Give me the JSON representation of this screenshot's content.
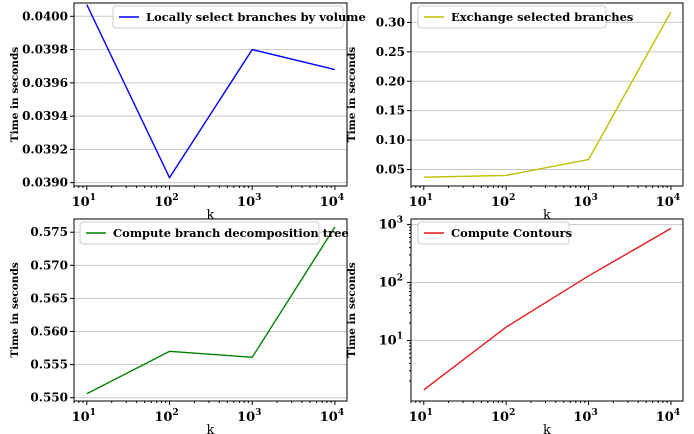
{
  "chart_data": [
    {
      "type": "line",
      "xscale": "log",
      "yscale": "linear",
      "x": [
        10,
        100,
        1000,
        10000
      ],
      "xlim": [
        7,
        14000
      ],
      "ylim": [
        0.03898,
        0.04008
      ],
      "yticks": [
        0.039,
        0.0392,
        0.0394,
        0.0396,
        0.0398,
        0.04
      ],
      "ytick_labels": [
        "0.0390",
        "0.0392",
        "0.0394",
        "0.0396",
        "0.0398",
        "0.0400"
      ],
      "xtick_base": "10",
      "xtick_exponents": [
        "1",
        "2",
        "3",
        "4"
      ],
      "xlabel": "k",
      "ylabel": "Time in seconds",
      "grid": "horizontal",
      "legend_position": "top-right",
      "series": [
        {
          "name": "Locally select branches by volume",
          "color": "#0000ff",
          "values": [
            0.04007,
            0.03903,
            0.0398,
            0.03968
          ]
        }
      ]
    },
    {
      "type": "line",
      "xscale": "log",
      "yscale": "linear",
      "x": [
        10,
        100,
        1000,
        10000
      ],
      "xlim": [
        7,
        14000
      ],
      "ylim": [
        0.022,
        0.333
      ],
      "yticks": [
        0.05,
        0.1,
        0.15,
        0.2,
        0.25,
        0.3
      ],
      "ytick_labels": [
        "0.05",
        "0.10",
        "0.15",
        "0.20",
        "0.25",
        "0.30"
      ],
      "xtick_base": "10",
      "xtick_exponents": [
        "1",
        "2",
        "3",
        "4"
      ],
      "xlabel": "k",
      "ylabel": "Time in seconds",
      "grid": "horizontal",
      "legend_position": "top-left",
      "series": [
        {
          "name": "Exchange selected branches",
          "color": "#bfbf00",
          "values": [
            0.037,
            0.04,
            0.067,
            0.318
          ]
        }
      ]
    },
    {
      "type": "line",
      "xscale": "log",
      "yscale": "linear",
      "x": [
        10,
        100,
        1000,
        10000
      ],
      "xlim": [
        7,
        14000
      ],
      "ylim": [
        0.5495,
        0.577
      ],
      "yticks": [
        0.55,
        0.555,
        0.56,
        0.565,
        0.57,
        0.575
      ],
      "ytick_labels": [
        "0.550",
        "0.555",
        "0.560",
        "0.565",
        "0.570",
        "0.575"
      ],
      "xtick_base": "10",
      "xtick_exponents": [
        "1",
        "2",
        "3",
        "4"
      ],
      "xlabel": "k",
      "ylabel": "Time in seconds",
      "grid": "horizontal",
      "legend_position": "top-left",
      "series": [
        {
          "name": "Compute branch decomposition tree",
          "color": "#008000",
          "values": [
            0.5506,
            0.557,
            0.5561,
            0.5758
          ]
        }
      ]
    },
    {
      "type": "line",
      "xscale": "log",
      "yscale": "log",
      "x": [
        10,
        100,
        1000,
        10000
      ],
      "xlim": [
        7,
        14000
      ],
      "ylim": [
        0.9,
        1250
      ],
      "yticks": [
        10,
        100,
        1000
      ],
      "ytick_base": "10",
      "ytick_exponents": [
        "1",
        "2",
        "3"
      ],
      "xtick_base": "10",
      "xtick_exponents": [
        "1",
        "2",
        "3",
        "4"
      ],
      "xlabel": "k",
      "ylabel": "Time in seconds",
      "grid": "horizontal",
      "legend_position": "top-left",
      "series": [
        {
          "name": "Compute Contours",
          "color": "#e41a1c",
          "values": [
            1.4,
            17,
            130,
            860
          ]
        }
      ]
    }
  ]
}
